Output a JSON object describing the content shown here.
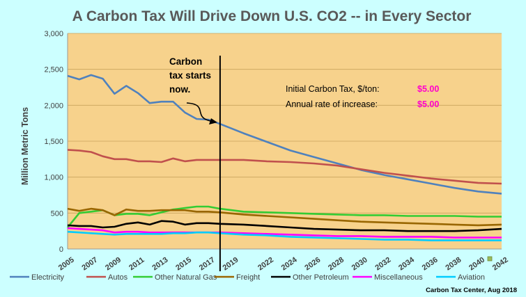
{
  "chart_data": {
    "type": "line",
    "title": "A Carbon Tax Will Drive Down U.S. CO2 -- in Every Sector",
    "ylabel": "Million Metric Tons",
    "xlabel": "",
    "xlim": [
      2005,
      2042
    ],
    "ylim": [
      0,
      3000
    ],
    "yticks": [
      0,
      500,
      1000,
      1500,
      2000,
      2500,
      3000
    ],
    "ytick_labels": [
      "0",
      "500",
      "1,000",
      "1,500",
      "2,000",
      "2,500",
      "3,000"
    ],
    "xticks": [
      2005,
      2007,
      2009,
      2011,
      2013,
      2015,
      2017,
      2019,
      2022,
      2024,
      2026,
      2028,
      2030,
      2032,
      2034,
      2036,
      2038,
      2040,
      2042
    ],
    "plot_background": "#f7d28c",
    "legend_position": "bottom",
    "annotation": {
      "text": [
        "Carbon",
        "tax starts",
        "now."
      ],
      "x": 2018
    },
    "params": [
      {
        "label": "Initial Carbon Tax, $/ton:",
        "value": "$5.00"
      },
      {
        "label": "Annual rate of increase:",
        "value": "$5.00"
      }
    ],
    "x": [
      2005,
      2006,
      2007,
      2008,
      2009,
      2010,
      2011,
      2012,
      2013,
      2014,
      2015,
      2016,
      2017,
      2018,
      2020,
      2022,
      2024,
      2026,
      2028,
      2030,
      2032,
      2034,
      2036,
      2038,
      2040,
      2042
    ],
    "series": [
      {
        "name": "Electricity",
        "color": "#4f81bd",
        "values": [
          2410,
          2360,
          2420,
          2370,
          2160,
          2270,
          2170,
          2030,
          2050,
          2050,
          1900,
          1810,
          1800,
          1740,
          1610,
          1490,
          1370,
          1280,
          1190,
          1100,
          1030,
          970,
          910,
          850,
          800,
          770
        ]
      },
      {
        "name": "Autos",
        "color": "#c0504d",
        "values": [
          1380,
          1370,
          1350,
          1290,
          1250,
          1250,
          1220,
          1220,
          1210,
          1260,
          1220,
          1240,
          1240,
          1240,
          1240,
          1220,
          1210,
          1190,
          1160,
          1110,
          1060,
          1020,
          980,
          950,
          920,
          910
        ]
      },
      {
        "name": "Other Natural Gas",
        "color": "#33cc33",
        "values": [
          300,
          500,
          520,
          540,
          470,
          490,
          490,
          470,
          510,
          550,
          570,
          590,
          590,
          560,
          520,
          510,
          500,
          490,
          480,
          470,
          470,
          460,
          460,
          460,
          450,
          450
        ]
      },
      {
        "name": "Freight",
        "color": "#996600",
        "values": [
          560,
          530,
          560,
          540,
          470,
          550,
          530,
          530,
          540,
          540,
          540,
          520,
          520,
          510,
          480,
          460,
          440,
          420,
          400,
          380,
          370,
          360,
          350,
          340,
          330,
          340
        ]
      },
      {
        "name": "Other Petroleum",
        "color": "#000000",
        "values": [
          330,
          320,
          320,
          300,
          310,
          350,
          370,
          340,
          390,
          380,
          340,
          360,
          360,
          350,
          340,
          320,
          300,
          280,
          270,
          260,
          260,
          250,
          250,
          250,
          260,
          280
        ]
      },
      {
        "name": "Miscellaneous",
        "color": "#ff00ff",
        "values": [
          290,
          280,
          270,
          260,
          230,
          240,
          240,
          230,
          230,
          230,
          230,
          230,
          230,
          230,
          220,
          210,
          200,
          190,
          180,
          180,
          170,
          170,
          170,
          160,
          160,
          160
        ]
      },
      {
        "name": "Aviation",
        "color": "#00ccff",
        "values": [
          240,
          230,
          220,
          210,
          200,
          210,
          210,
          210,
          210,
          220,
          220,
          230,
          230,
          220,
          200,
          190,
          170,
          160,
          150,
          140,
          130,
          130,
          120,
          120,
          120,
          120
        ]
      }
    ]
  },
  "credit": "Carbon Tax Center, Aug 2018"
}
